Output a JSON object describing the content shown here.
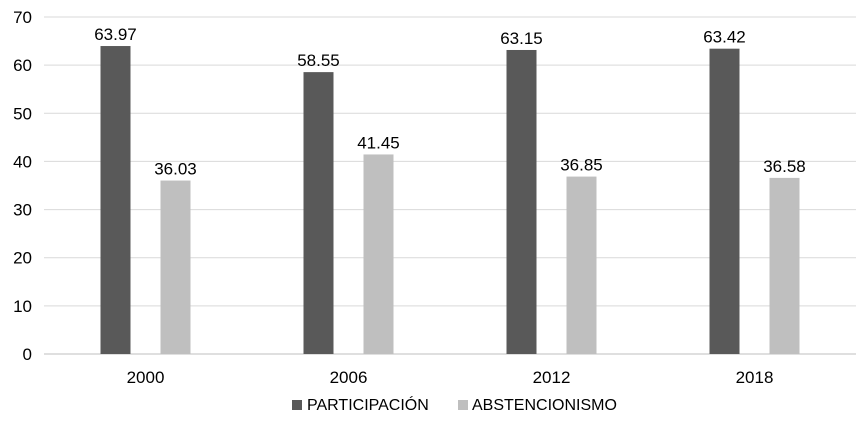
{
  "chart_data": {
    "type": "bar",
    "categories": [
      "2000",
      "2006",
      "2012",
      "2018"
    ],
    "series": [
      {
        "name": "PARTICIPACIÓN",
        "values": [
          63.97,
          58.55,
          63.15,
          63.42
        ],
        "color": "#595959"
      },
      {
        "name": "ABSTENCIONISMO",
        "values": [
          36.03,
          41.45,
          36.85,
          36.58
        ],
        "color": "#bfbfbf"
      }
    ],
    "data_labels": [
      [
        "63.97",
        "58.55",
        "63.15",
        "63.42"
      ],
      [
        "36.03",
        "41.45",
        "36.85",
        "36.58"
      ]
    ],
    "yticks": [
      "0",
      "10",
      "20",
      "30",
      "40",
      "50",
      "60",
      "70"
    ],
    "ylim": [
      0,
      70
    ],
    "grid": true,
    "legend_position": "bottom"
  }
}
